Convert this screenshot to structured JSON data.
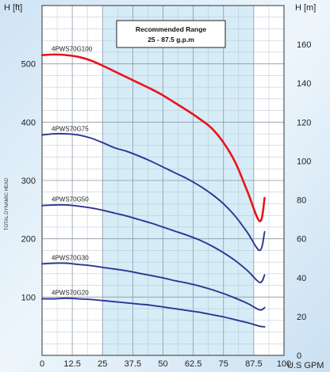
{
  "chart_data": {
    "type": "line",
    "left_axis_label": "H [ft]",
    "right_axis_label": "H [m]",
    "vertical_label": "TOTAL DYNAMIC HEAD",
    "x_unit_label": "U.S GPM",
    "xlim": [
      0,
      100
    ],
    "ylim": [
      0,
      600
    ],
    "y2lim": [
      0,
      180
    ],
    "x_ticks": [
      0,
      12.5,
      25,
      37.5,
      50,
      62.5,
      75,
      87.5,
      100
    ],
    "x_tick_labels": [
      "0",
      "12.5",
      "25",
      "37.5",
      "50",
      "62.5",
      "75",
      "87.5",
      "100"
    ],
    "y_ticks": [
      100,
      200,
      300,
      400,
      500
    ],
    "y_tick_labels": [
      "100",
      "200",
      "300",
      "400",
      "500"
    ],
    "y2_ticks": [
      0,
      20,
      40,
      60,
      80,
      100,
      120,
      140,
      160
    ],
    "y2_tick_labels": [
      "0",
      "20",
      "40",
      "60",
      "80",
      "100",
      "120",
      "140",
      "160"
    ],
    "grid": true,
    "recommended_range": {
      "x": [
        25,
        87.5
      ],
      "title": "Recommended Range",
      "subtitle": "25 - 87.5 g.p.m"
    },
    "series": [
      {
        "name": "4PWS70G100",
        "color": "#e8141c",
        "highlight": true,
        "x": [
          0,
          5,
          10,
          15,
          20,
          25,
          30,
          35,
          40,
          45,
          50,
          55,
          60,
          65,
          70,
          75,
          80,
          85,
          90,
          92
        ],
        "y": [
          515,
          516,
          515,
          512,
          506,
          497,
          487,
          477,
          467,
          457,
          446,
          433,
          420,
          406,
          390,
          365,
          330,
          280,
          230,
          270
        ]
      },
      {
        "name": "4PWS70G75",
        "color": "#2d3592",
        "x": [
          0,
          5,
          10,
          15,
          20,
          25,
          30,
          35,
          40,
          45,
          50,
          55,
          60,
          65,
          70,
          75,
          80,
          85,
          90,
          92
        ],
        "y": [
          378,
          380,
          380,
          378,
          373,
          365,
          356,
          350,
          342,
          333,
          323,
          313,
          303,
          291,
          277,
          260,
          238,
          210,
          180,
          212
        ]
      },
      {
        "name": "4PWS70G50",
        "color": "#2d3592",
        "x": [
          0,
          5,
          10,
          15,
          20,
          25,
          30,
          35,
          40,
          45,
          50,
          55,
          60,
          65,
          70,
          75,
          80,
          85,
          90,
          92
        ],
        "y": [
          257,
          258,
          258,
          256,
          253,
          249,
          244,
          239,
          233,
          227,
          220,
          213,
          206,
          198,
          188,
          176,
          162,
          145,
          125,
          138
        ]
      },
      {
        "name": "4PWS70G30",
        "color": "#2d3592",
        "x": [
          0,
          5,
          10,
          15,
          20,
          25,
          30,
          35,
          40,
          45,
          50,
          55,
          60,
          65,
          70,
          75,
          80,
          85,
          90,
          92
        ],
        "y": [
          157,
          158,
          158,
          156,
          154,
          151,
          148,
          145,
          141,
          137,
          133,
          128,
          124,
          119,
          113,
          106,
          98,
          89,
          78,
          82
        ]
      },
      {
        "name": "4PWS70G20",
        "color": "#2d3592",
        "x": [
          0,
          5,
          10,
          15,
          20,
          25,
          30,
          35,
          40,
          45,
          50,
          55,
          60,
          65,
          70,
          75,
          80,
          85,
          90,
          92
        ],
        "y": [
          97,
          97,
          98,
          97,
          96,
          94,
          92,
          90,
          88,
          86,
          83,
          80,
          77,
          74,
          70,
          66,
          61,
          56,
          50,
          49
        ]
      }
    ]
  }
}
